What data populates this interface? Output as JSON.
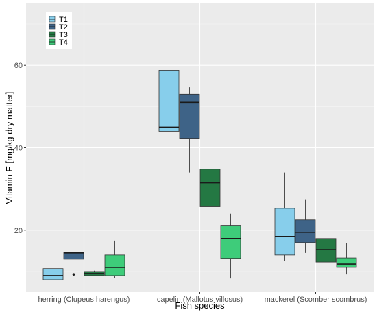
{
  "chart_data": {
    "type": "boxplot",
    "xlabel": "Fish species",
    "ylabel": "Vitamin E [mg/kg dry matter]",
    "categories": [
      "herring (Clupeus harengus)",
      "capelin (Mallotus villosus)",
      "mackerel (Scomber scombrus)"
    ],
    "ylim": [
      5,
      75
    ],
    "yticks": [
      20,
      40,
      60
    ],
    "grid": true,
    "legend_position": "top-left",
    "series": [
      {
        "name": "T1",
        "color": "#87ceeb",
        "boxes": [
          {
            "min": 7,
            "q1": 8,
            "median": 9,
            "q3": 10.7,
            "max": 12.5,
            "outliers": []
          },
          {
            "min": 43,
            "q1": 44,
            "median": 45,
            "q3": 58.8,
            "max": 73,
            "outliers": []
          },
          {
            "min": 12.5,
            "q1": 14,
            "median": 18.5,
            "q3": 25.3,
            "max": 34,
            "outliers": []
          }
        ]
      },
      {
        "name": "T2",
        "color": "#3e6387",
        "boxes": [
          {
            "min": 13,
            "q1": 13,
            "median": 14.5,
            "q3": 14.6,
            "max": 14.6,
            "outliers": [
              9.3
            ]
          },
          {
            "min": 34,
            "q1": 42.3,
            "median": 51,
            "q3": 53,
            "max": 54.7,
            "outliers": []
          },
          {
            "min": 14.5,
            "q1": 17,
            "median": 19.5,
            "q3": 22.5,
            "max": 27.5,
            "outliers": []
          }
        ]
      },
      {
        "name": "T3",
        "color": "#247843",
        "boxes": [
          {
            "min": 9,
            "q1": 9,
            "median": 9.5,
            "q3": 10,
            "max": 10.2,
            "outliers": []
          },
          {
            "min": 20,
            "q1": 25.7,
            "median": 31.5,
            "q3": 34.8,
            "max": 38.2,
            "outliers": []
          },
          {
            "min": 9.3,
            "q1": 12.3,
            "median": 15.3,
            "q3": 18,
            "max": 20.5,
            "outliers": []
          }
        ]
      },
      {
        "name": "T4",
        "color": "#3ecc7a",
        "boxes": [
          {
            "min": 8.5,
            "q1": 9,
            "median": 11,
            "q3": 14,
            "max": 17.5,
            "outliers": []
          },
          {
            "min": 8.3,
            "q1": 13.2,
            "median": 18,
            "q3": 21.2,
            "max": 24,
            "outliers": []
          },
          {
            "min": 9.3,
            "q1": 11,
            "median": 11.8,
            "q3": 13.3,
            "max": 16.8,
            "outliers": []
          }
        ]
      }
    ]
  }
}
